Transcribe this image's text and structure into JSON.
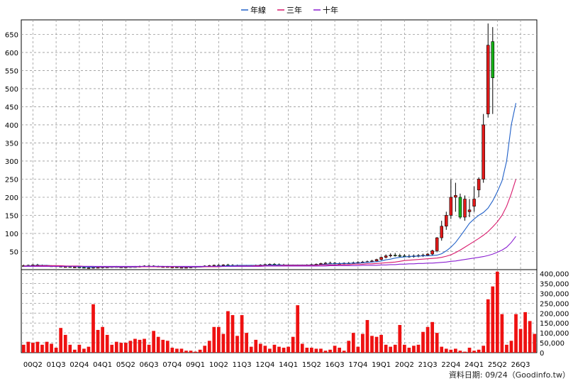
{
  "legend": [
    {
      "name": "年線",
      "color": "#2060c8"
    },
    {
      "name": "三年",
      "color": "#d8196c"
    },
    {
      "name": "十年",
      "color": "#8a1fd0"
    }
  ],
  "source_label": "資料日期: 09/24（Goodinfo.tw）",
  "chart_data": [
    {
      "type": "candlestick",
      "title": "",
      "ylim": [
        0,
        690
      ],
      "yticks": [
        50,
        100,
        150,
        200,
        250,
        300,
        350,
        400,
        450,
        500,
        550,
        600,
        650
      ],
      "grid": true,
      "legend_position": "top-center",
      "series_lines": [
        "年線",
        "三年",
        "十年"
      ],
      "candles": [
        {
          "o": 10,
          "h": 14,
          "l": 8,
          "c": 11
        },
        {
          "o": 11,
          "h": 14,
          "l": 9,
          "c": 12
        },
        {
          "o": 12,
          "h": 15,
          "l": 10,
          "c": 13
        },
        {
          "o": 13,
          "h": 16,
          "l": 11,
          "c": 12
        },
        {
          "o": 12,
          "h": 14,
          "l": 10,
          "c": 11
        },
        {
          "o": 11,
          "h": 13,
          "l": 9,
          "c": 10
        },
        {
          "o": 10,
          "h": 12,
          "l": 8,
          "c": 10
        },
        {
          "o": 10,
          "h": 12,
          "l": 8,
          "c": 9
        },
        {
          "o": 9,
          "h": 11,
          "l": 7,
          "c": 8
        },
        {
          "o": 8,
          "h": 10,
          "l": 6,
          "c": 8
        },
        {
          "o": 8,
          "h": 10,
          "l": 6,
          "c": 7
        },
        {
          "o": 7,
          "h": 9,
          "l": 5,
          "c": 7
        },
        {
          "o": 7,
          "h": 9,
          "l": 5,
          "c": 6
        },
        {
          "o": 6,
          "h": 8,
          "l": 4,
          "c": 5
        },
        {
          "o": 5,
          "h": 7,
          "l": 3,
          "c": 5
        },
        {
          "o": 5,
          "h": 7,
          "l": 3,
          "c": 6
        },
        {
          "o": 6,
          "h": 8,
          "l": 4,
          "c": 6
        },
        {
          "o": 6,
          "h": 8,
          "l": 4,
          "c": 7
        },
        {
          "o": 7,
          "h": 9,
          "l": 5,
          "c": 7
        },
        {
          "o": 7,
          "h": 9,
          "l": 5,
          "c": 8
        },
        {
          "o": 8,
          "h": 10,
          "l": 6,
          "c": 7
        },
        {
          "o": 7,
          "h": 9,
          "l": 5,
          "c": 7
        },
        {
          "o": 7,
          "h": 9,
          "l": 5,
          "c": 7
        },
        {
          "o": 7,
          "h": 9,
          "l": 5,
          "c": 8
        },
        {
          "o": 8,
          "h": 10,
          "l": 6,
          "c": 8
        },
        {
          "o": 8,
          "h": 11,
          "l": 6,
          "c": 9
        },
        {
          "o": 9,
          "h": 12,
          "l": 7,
          "c": 10
        },
        {
          "o": 10,
          "h": 13,
          "l": 8,
          "c": 10
        },
        {
          "o": 10,
          "h": 12,
          "l": 8,
          "c": 9
        },
        {
          "o": 9,
          "h": 11,
          "l": 7,
          "c": 8
        },
        {
          "o": 8,
          "h": 10,
          "l": 6,
          "c": 8
        },
        {
          "o": 8,
          "h": 10,
          "l": 6,
          "c": 7
        },
        {
          "o": 7,
          "h": 9,
          "l": 5,
          "c": 7
        },
        {
          "o": 7,
          "h": 9,
          "l": 5,
          "c": 6
        },
        {
          "o": 6,
          "h": 8,
          "l": 4,
          "c": 6
        },
        {
          "o": 6,
          "h": 8,
          "l": 4,
          "c": 6
        },
        {
          "o": 6,
          "h": 8,
          "l": 4,
          "c": 7
        },
        {
          "o": 7,
          "h": 9,
          "l": 5,
          "c": 8
        },
        {
          "o": 8,
          "h": 10,
          "l": 6,
          "c": 9
        },
        {
          "o": 9,
          "h": 12,
          "l": 7,
          "c": 10
        },
        {
          "o": 10,
          "h": 13,
          "l": 8,
          "c": 11
        },
        {
          "o": 11,
          "h": 14,
          "l": 9,
          "c": 12
        },
        {
          "o": 12,
          "h": 15,
          "l": 10,
          "c": 12
        },
        {
          "o": 12,
          "h": 15,
          "l": 10,
          "c": 13
        },
        {
          "o": 13,
          "h": 16,
          "l": 11,
          "c": 12
        },
        {
          "o": 12,
          "h": 15,
          "l": 10,
          "c": 12
        },
        {
          "o": 12,
          "h": 14,
          "l": 10,
          "c": 11
        },
        {
          "o": 11,
          "h": 13,
          "l": 9,
          "c": 11
        },
        {
          "o": 11,
          "h": 13,
          "l": 9,
          "c": 11
        },
        {
          "o": 11,
          "h": 13,
          "l": 9,
          "c": 12
        },
        {
          "o": 12,
          "h": 14,
          "l": 10,
          "c": 12
        },
        {
          "o": 12,
          "h": 15,
          "l": 10,
          "c": 13
        },
        {
          "o": 13,
          "h": 16,
          "l": 11,
          "c": 14
        },
        {
          "o": 14,
          "h": 17,
          "l": 12,
          "c": 15
        },
        {
          "o": 15,
          "h": 18,
          "l": 12,
          "c": 14
        },
        {
          "o": 14,
          "h": 17,
          "l": 12,
          "c": 13
        },
        {
          "o": 13,
          "h": 16,
          "l": 11,
          "c": 13
        },
        {
          "o": 13,
          "h": 15,
          "l": 11,
          "c": 12
        },
        {
          "o": 12,
          "h": 14,
          "l": 10,
          "c": 12
        },
        {
          "o": 12,
          "h": 14,
          "l": 10,
          "c": 12
        },
        {
          "o": 12,
          "h": 14,
          "l": 10,
          "c": 12
        },
        {
          "o": 12,
          "h": 15,
          "l": 10,
          "c": 13
        },
        {
          "o": 13,
          "h": 16,
          "l": 11,
          "c": 14
        },
        {
          "o": 14,
          "h": 17,
          "l": 12,
          "c": 15
        },
        {
          "o": 15,
          "h": 19,
          "l": 13,
          "c": 17
        },
        {
          "o": 17,
          "h": 21,
          "l": 14,
          "c": 18
        },
        {
          "o": 18,
          "h": 22,
          "l": 15,
          "c": 18
        },
        {
          "o": 18,
          "h": 21,
          "l": 15,
          "c": 17
        },
        {
          "o": 17,
          "h": 20,
          "l": 15,
          "c": 17
        },
        {
          "o": 17,
          "h": 20,
          "l": 15,
          "c": 18
        },
        {
          "o": 18,
          "h": 21,
          "l": 16,
          "c": 18
        },
        {
          "o": 18,
          "h": 22,
          "l": 16,
          "c": 19
        },
        {
          "o": 19,
          "h": 23,
          "l": 17,
          "c": 20
        },
        {
          "o": 20,
          "h": 24,
          "l": 18,
          "c": 21
        },
        {
          "o": 21,
          "h": 25,
          "l": 19,
          "c": 22
        },
        {
          "o": 22,
          "h": 27,
          "l": 20,
          "c": 24
        },
        {
          "o": 24,
          "h": 30,
          "l": 22,
          "c": 28
        },
        {
          "o": 28,
          "h": 36,
          "l": 26,
          "c": 34
        },
        {
          "o": 34,
          "h": 42,
          "l": 31,
          "c": 38
        },
        {
          "o": 38,
          "h": 45,
          "l": 34,
          "c": 40
        },
        {
          "o": 40,
          "h": 46,
          "l": 36,
          "c": 39
        },
        {
          "o": 39,
          "h": 44,
          "l": 35,
          "c": 38
        },
        {
          "o": 38,
          "h": 43,
          "l": 34,
          "c": 37
        },
        {
          "o": 37,
          "h": 42,
          "l": 33,
          "c": 37
        },
        {
          "o": 37,
          "h": 42,
          "l": 33,
          "c": 38
        },
        {
          "o": 38,
          "h": 43,
          "l": 34,
          "c": 39
        },
        {
          "o": 39,
          "h": 44,
          "l": 35,
          "c": 40
        },
        {
          "o": 40,
          "h": 46,
          "l": 37,
          "c": 43
        },
        {
          "o": 43,
          "h": 55,
          "l": 40,
          "c": 52
        },
        {
          "o": 52,
          "h": 90,
          "l": 48,
          "c": 88
        },
        {
          "o": 88,
          "h": 135,
          "l": 80,
          "c": 120
        },
        {
          "o": 120,
          "h": 160,
          "l": 110,
          "c": 150
        },
        {
          "o": 150,
          "h": 250,
          "l": 140,
          "c": 200
        },
        {
          "o": 200,
          "h": 240,
          "l": 160,
          "c": 205
        },
        {
          "o": 200,
          "h": 210,
          "l": 140,
          "c": 145
        },
        {
          "o": 145,
          "h": 205,
          "l": 135,
          "c": 195
        },
        {
          "o": 160,
          "h": 195,
          "l": 145,
          "c": 165
        },
        {
          "o": 175,
          "h": 230,
          "l": 160,
          "c": 195
        },
        {
          "o": 220,
          "h": 255,
          "l": 200,
          "c": 250
        },
        {
          "o": 250,
          "h": 430,
          "l": 240,
          "c": 400
        },
        {
          "o": 430,
          "h": 680,
          "l": 420,
          "c": 620
        },
        {
          "o": 630,
          "h": 670,
          "l": 430,
          "c": 530
        }
      ],
      "lines": {
        "年線": [
          10,
          11,
          11,
          12,
          12,
          12,
          11,
          11,
          10,
          10,
          9,
          9,
          8,
          8,
          7,
          7,
          7,
          7,
          7,
          7,
          7,
          7,
          7,
          7,
          7,
          8,
          8,
          8,
          9,
          9,
          9,
          8,
          8,
          8,
          7,
          7,
          7,
          7,
          7,
          8,
          8,
          9,
          10,
          10,
          11,
          11,
          12,
          12,
          12,
          12,
          12,
          12,
          12,
          13,
          13,
          13,
          13,
          13,
          13,
          13,
          13,
          13,
          13,
          13,
          14,
          15,
          16,
          16,
          17,
          17,
          17,
          18,
          18,
          19,
          20,
          21,
          22,
          24,
          27,
          29,
          32,
          34,
          35,
          36,
          37,
          37,
          38,
          38,
          39,
          40,
          44,
          52,
          62,
          75,
          92,
          110,
          128,
          140,
          150,
          158,
          170,
          190,
          215,
          245,
          300,
          400,
          460
        ],
        "三年": [
          10,
          10,
          10,
          11,
          11,
          11,
          11,
          11,
          11,
          10,
          10,
          10,
          10,
          9,
          9,
          9,
          8,
          8,
          8,
          8,
          8,
          8,
          8,
          8,
          8,
          8,
          8,
          8,
          8,
          8,
          8,
          8,
          8,
          8,
          8,
          8,
          8,
          8,
          8,
          8,
          8,
          8,
          8,
          9,
          9,
          9,
          10,
          10,
          10,
          10,
          11,
          11,
          11,
          11,
          11,
          11,
          12,
          12,
          12,
          12,
          12,
          12,
          12,
          12,
          13,
          13,
          13,
          13,
          14,
          14,
          14,
          15,
          15,
          15,
          16,
          16,
          17,
          18,
          19,
          20,
          21,
          23,
          25,
          26,
          27,
          28,
          29,
          30,
          31,
          32,
          34,
          37,
          41,
          47,
          54,
          62,
          70,
          78,
          86,
          95,
          105,
          118,
          132,
          150,
          175,
          210,
          250
        ],
        "十年": [
          9,
          9,
          9,
          9,
          9,
          9,
          9,
          9,
          9,
          9,
          9,
          9,
          9,
          9,
          9,
          9,
          9,
          9,
          9,
          9,
          9,
          9,
          9,
          9,
          9,
          9,
          9,
          9,
          9,
          9,
          9,
          9,
          9,
          9,
          9,
          9,
          9,
          9,
          9,
          9,
          9,
          9,
          9,
          9,
          9,
          9,
          9,
          9,
          9,
          9,
          9,
          9,
          10,
          10,
          10,
          10,
          10,
          10,
          10,
          10,
          10,
          10,
          10,
          10,
          10,
          10,
          11,
          11,
          11,
          11,
          11,
          11,
          11,
          12,
          12,
          12,
          12,
          13,
          13,
          14,
          14,
          15,
          15,
          16,
          16,
          17,
          17,
          18,
          18,
          19,
          20,
          21,
          23,
          24,
          26,
          28,
          30,
          32,
          34,
          36,
          39,
          43,
          48,
          54,
          62,
          75,
          92
        ]
      }
    },
    {
      "type": "bar",
      "title": "",
      "ylim": [
        0,
        420000
      ],
      "yticks": [
        0,
        50000,
        100000,
        150000,
        200000,
        250000,
        300000,
        350000,
        400000
      ],
      "ytick_labels": [
        "0",
        "50,000",
        "100,000",
        "150,000",
        "200,000",
        "250,000",
        "300,000",
        "350,000",
        "400,000"
      ],
      "grid": true,
      "color": "#ee1111",
      "x_tick_labels": [
        "00Q2",
        "01Q3",
        "02Q4",
        "04Q1",
        "05Q2",
        "06Q3",
        "07Q4",
        "09Q1",
        "10Q2",
        "11Q3",
        "12Q4",
        "14Q1",
        "15Q2",
        "16Q3",
        "17Q4",
        "19Q1",
        "20Q2",
        "21Q3",
        "22Q4",
        "24Q1",
        "25Q2",
        "26Q3"
      ],
      "values": [
        40000,
        55000,
        50000,
        55000,
        40000,
        55000,
        45000,
        25000,
        125000,
        90000,
        40000,
        15000,
        40000,
        20000,
        30000,
        245000,
        115000,
        130000,
        90000,
        40000,
        55000,
        50000,
        50000,
        60000,
        70000,
        65000,
        70000,
        40000,
        110000,
        80000,
        65000,
        60000,
        25000,
        20000,
        20000,
        10000,
        10000,
        5000,
        15000,
        35000,
        60000,
        130000,
        130000,
        95000,
        210000,
        190000,
        85000,
        190000,
        100000,
        30000,
        65000,
        45000,
        35000,
        20000,
        40000,
        30000,
        25000,
        30000,
        80000,
        240000,
        45000,
        25000,
        25000,
        20000,
        20000,
        10000,
        15000,
        35000,
        25000,
        10000,
        60000,
        100000,
        30000,
        95000,
        165000,
        85000,
        80000,
        90000,
        40000,
        30000,
        40000,
        140000,
        40000,
        25000,
        35000,
        40000,
        105000,
        130000,
        155000,
        100000,
        30000,
        20000,
        15000,
        20000,
        10000,
        5000,
        25000,
        10000,
        15000,
        35000,
        270000,
        335000,
        410000,
        195000,
        40000,
        60000,
        195000,
        120000,
        205000,
        160000,
        95000
      ]
    }
  ]
}
